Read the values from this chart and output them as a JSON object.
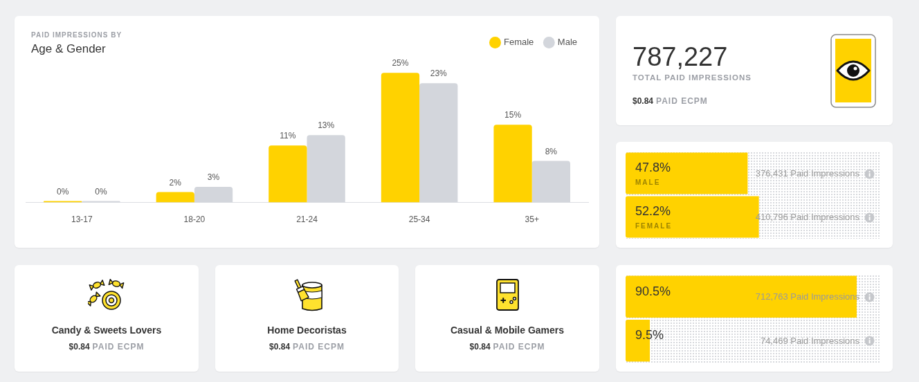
{
  "chart_data": [
    {
      "type": "bar",
      "title": "Age & Gender",
      "subtitle": "PAID IMPRESSIONS BY",
      "categories": [
        "13-17",
        "18-20",
        "21-24",
        "25-34",
        "35+"
      ],
      "series": [
        {
          "name": "Female",
          "color": "#ffd200",
          "values": [
            0,
            2,
            11,
            25,
            15
          ],
          "value_labels": [
            "0%",
            "2%",
            "11%",
            "25%",
            "15%"
          ]
        },
        {
          "name": "Male",
          "color": "#d3d6dc",
          "values": [
            0,
            3,
            13,
            23,
            8
          ],
          "value_labels": [
            "0%",
            "3%",
            "13%",
            "23%",
            "8%"
          ]
        }
      ],
      "legend": "top right",
      "tick_labels": "x"
    },
    {
      "type": "other",
      "title": "787,227",
      "subtitle": "TOTAL PAID IMPRESSIONS",
      "annotations": [
        "$0.84",
        "PAID ECPM"
      ]
    },
    {
      "type": "bar",
      "orientation": "horizontal",
      "categories": [
        "MALE",
        "FEMALE"
      ],
      "values": [
        47.8,
        52.2
      ],
      "value_labels": [
        "47.8%",
        "52.2%"
      ],
      "color": "#ffd200",
      "xlim": [
        0,
        100
      ],
      "tick_labels": "y",
      "annotations": [
        "376,431 Paid Impressions",
        "410,796 Paid Impressions"
      ]
    },
    {
      "type": "other",
      "title": "Candy & Sweets Lovers",
      "annotations": [
        "$0.84",
        "PAID ECPM"
      ]
    },
    {
      "type": "other",
      "title": "Home Decoristas",
      "annotations": [
        "$0.84",
        "PAID ECPM"
      ]
    },
    {
      "type": "other",
      "title": "Casual & Mobile Gamers",
      "annotations": [
        "$0.84",
        "PAID ECPM"
      ]
    },
    {
      "type": "bar",
      "orientation": "horizontal",
      "categories": [
        null,
        null
      ],
      "values": [
        90.5,
        9.5
      ],
      "value_labels": [
        "90.5%",
        "9.5%"
      ],
      "color": "#ffd200",
      "xlim": [
        0,
        100
      ],
      "tick_labels": false,
      "annotations": [
        "712,763 Paid Impressions",
        "74,469 Paid Impressions"
      ]
    }
  ]
}
